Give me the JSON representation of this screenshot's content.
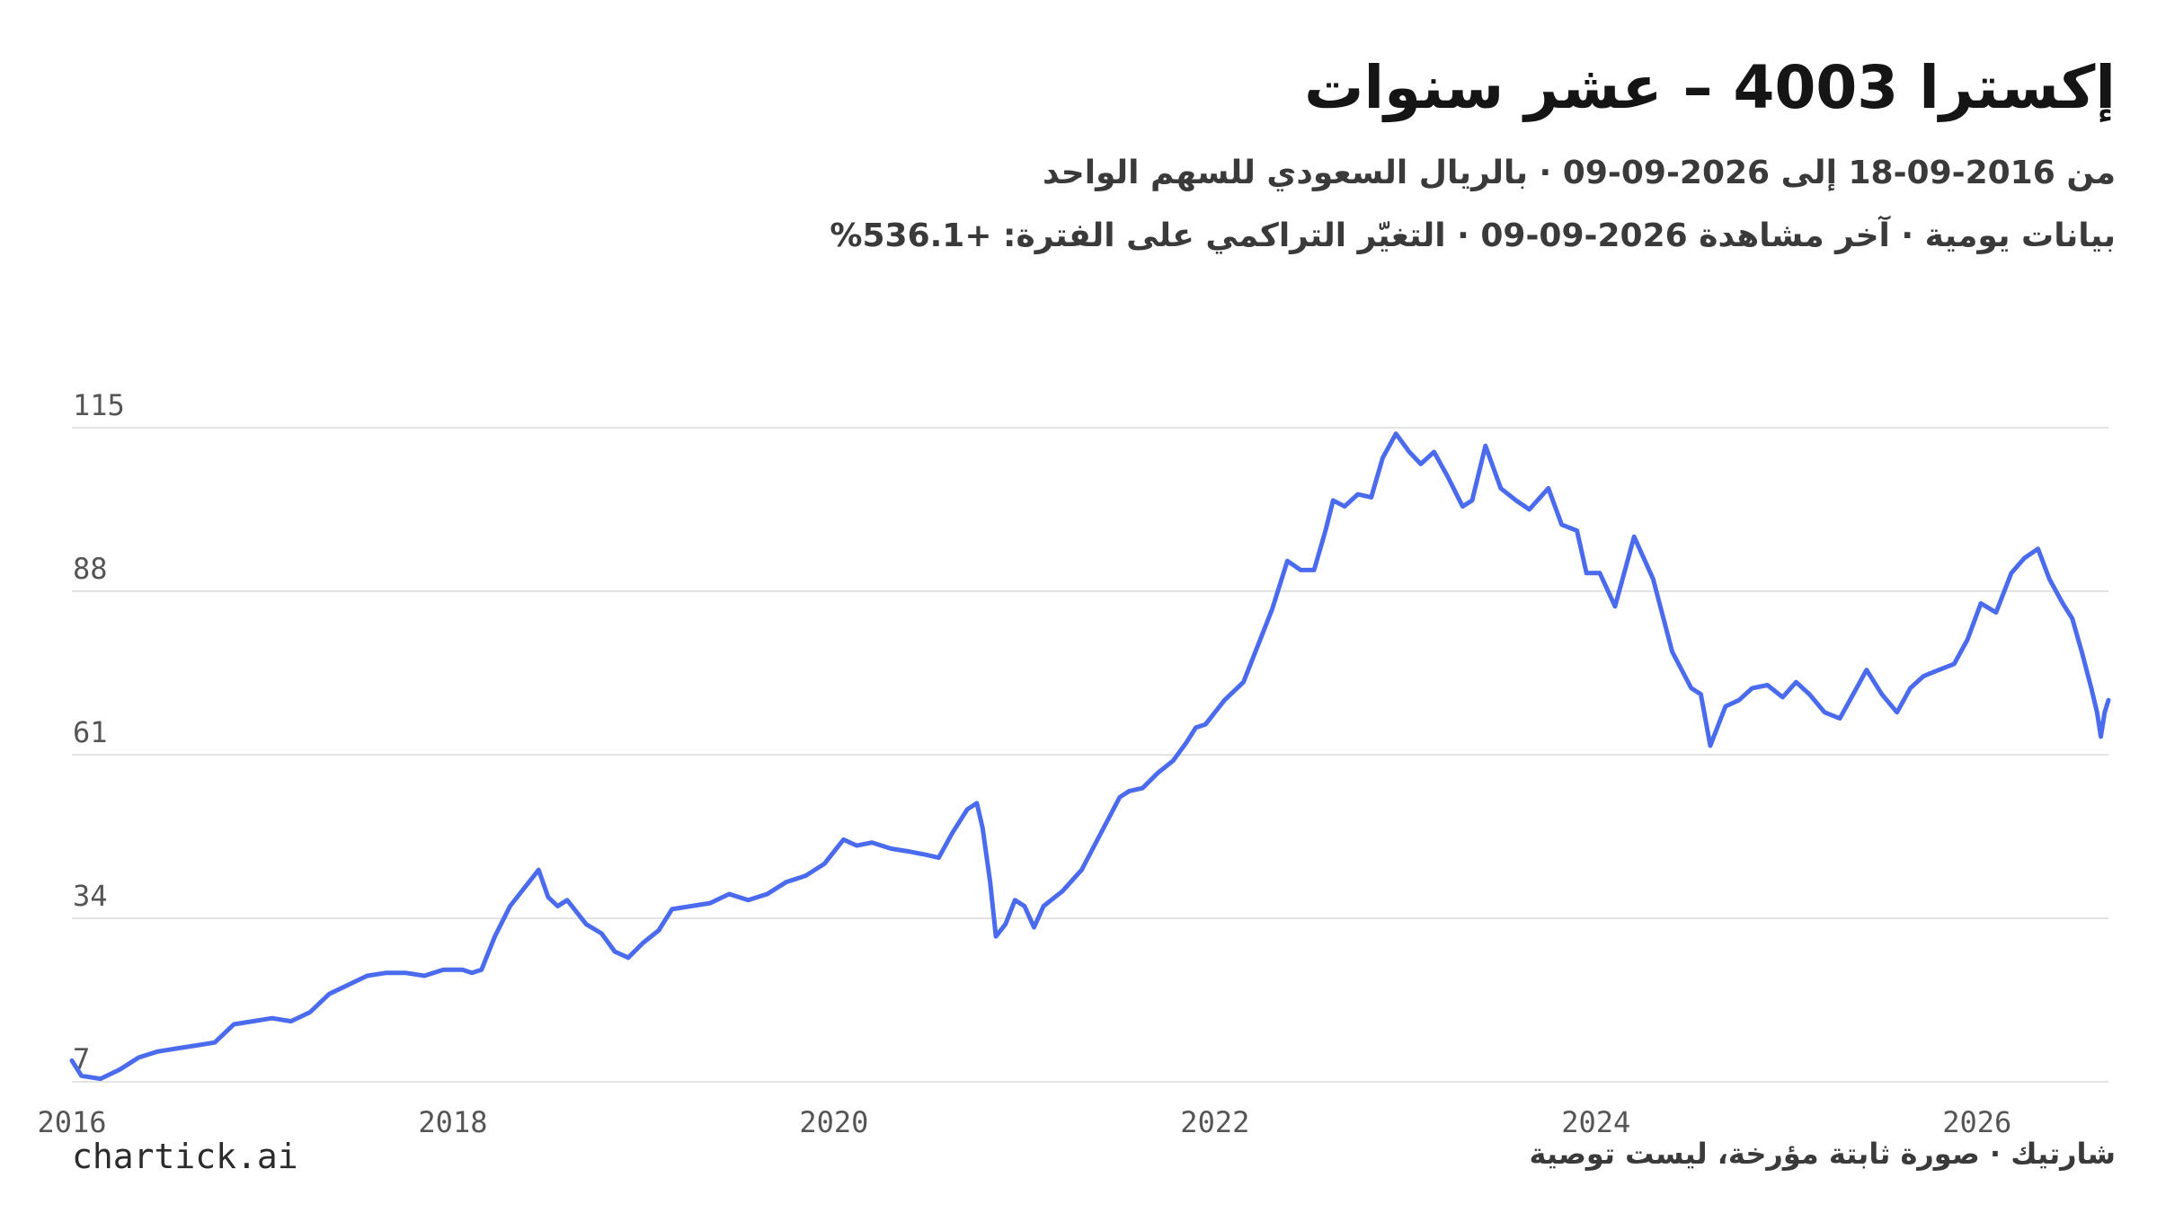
{
  "header": {
    "title": "إكسترا 4003 – عشر سنوات",
    "subtitle": "من 2016-09-18 إلى 2026-09-09 · بالريال السعودي للسهم الواحد",
    "subtitle2": "بيانات يومية · آخر مشاهدة 2026-09-09 · التغيّر التراكمي على الفترة: +536.1%"
  },
  "footer": {
    "brand": "chartick.ai",
    "note": "شارتيك · صورة ثابتة مؤرخة، ليست توصية"
  },
  "colors": {
    "line": "#4b6bee",
    "grid": "#e3e3e3",
    "text": "#1a1a1a"
  },
  "chart_data": {
    "type": "line",
    "y_ticks": [
      7,
      34,
      61,
      88,
      115
    ],
    "x_ticks": [
      2016,
      2018,
      2020,
      2022,
      2024,
      2026
    ],
    "x_range": [
      2016.0,
      2026.69
    ],
    "y_range": [
      7,
      115
    ],
    "grid": "horizontal",
    "series": [
      {
        "points": [
          [
            2016.0,
            10.5
          ],
          [
            2016.05,
            8.0
          ],
          [
            2016.15,
            7.5
          ],
          [
            2016.25,
            9.0
          ],
          [
            2016.35,
            11.0
          ],
          [
            2016.45,
            12.0
          ],
          [
            2016.55,
            12.5
          ],
          [
            2016.65,
            13.0
          ],
          [
            2016.75,
            13.5
          ],
          [
            2016.85,
            16.5
          ],
          [
            2016.95,
            17.0
          ],
          [
            2017.05,
            17.5
          ],
          [
            2017.15,
            17.0
          ],
          [
            2017.25,
            18.5
          ],
          [
            2017.35,
            21.5
          ],
          [
            2017.45,
            23.0
          ],
          [
            2017.55,
            24.5
          ],
          [
            2017.65,
            25.0
          ],
          [
            2017.75,
            25.0
          ],
          [
            2017.85,
            24.5
          ],
          [
            2017.95,
            25.5
          ],
          [
            2018.05,
            25.5
          ],
          [
            2018.1,
            25.0
          ],
          [
            2018.15,
            25.5
          ],
          [
            2018.22,
            31.0
          ],
          [
            2018.3,
            36.0
          ],
          [
            2018.35,
            38.0
          ],
          [
            2018.4,
            40.0
          ],
          [
            2018.45,
            42.0
          ],
          [
            2018.5,
            37.5
          ],
          [
            2018.55,
            36.0
          ],
          [
            2018.6,
            37.0
          ],
          [
            2018.7,
            33.0
          ],
          [
            2018.78,
            31.5
          ],
          [
            2018.85,
            28.5
          ],
          [
            2018.92,
            27.5
          ],
          [
            2019.0,
            30.0
          ],
          [
            2019.08,
            32.0
          ],
          [
            2019.15,
            35.5
          ],
          [
            2019.25,
            36.0
          ],
          [
            2019.35,
            36.5
          ],
          [
            2019.45,
            38.0
          ],
          [
            2019.55,
            37.0
          ],
          [
            2019.65,
            38.0
          ],
          [
            2019.75,
            40.0
          ],
          [
            2019.85,
            41.0
          ],
          [
            2019.95,
            43.0
          ],
          [
            2020.05,
            47.0
          ],
          [
            2020.12,
            46.0
          ],
          [
            2020.2,
            46.5
          ],
          [
            2020.3,
            45.5
          ],
          [
            2020.4,
            45.0
          ],
          [
            2020.48,
            44.5
          ],
          [
            2020.55,
            44.0
          ],
          [
            2020.62,
            48.0
          ],
          [
            2020.7,
            52.0
          ],
          [
            2020.75,
            53.0
          ],
          [
            2020.78,
            49.0
          ],
          [
            2020.82,
            40.0
          ],
          [
            2020.85,
            31.0
          ],
          [
            2020.9,
            33.0
          ],
          [
            2020.95,
            37.0
          ],
          [
            2021.0,
            36.0
          ],
          [
            2021.05,
            32.5
          ],
          [
            2021.1,
            36.0
          ],
          [
            2021.2,
            38.5
          ],
          [
            2021.3,
            42.0
          ],
          [
            2021.4,
            48.0
          ],
          [
            2021.5,
            54.0
          ],
          [
            2021.55,
            55.0
          ],
          [
            2021.62,
            55.5
          ],
          [
            2021.7,
            58.0
          ],
          [
            2021.78,
            60.0
          ],
          [
            2021.85,
            63.0
          ],
          [
            2021.9,
            65.5
          ],
          [
            2021.95,
            66.0
          ],
          [
            2022.05,
            70.0
          ],
          [
            2022.15,
            73.0
          ],
          [
            2022.2,
            77.0
          ],
          [
            2022.25,
            81.0
          ],
          [
            2022.3,
            85.0
          ],
          [
            2022.38,
            93.0
          ],
          [
            2022.45,
            91.5
          ],
          [
            2022.52,
            91.5
          ],
          [
            2022.58,
            98.0
          ],
          [
            2022.62,
            103.0
          ],
          [
            2022.68,
            102.0
          ],
          [
            2022.75,
            104.0
          ],
          [
            2022.82,
            103.5
          ],
          [
            2022.88,
            110.0
          ],
          [
            2022.95,
            114.0
          ],
          [
            2023.02,
            111.0
          ],
          [
            2023.08,
            109.0
          ],
          [
            2023.15,
            111.0
          ],
          [
            2023.22,
            107.0
          ],
          [
            2023.3,
            102.0
          ],
          [
            2023.35,
            103.0
          ],
          [
            2023.42,
            112.0
          ],
          [
            2023.5,
            105.0
          ],
          [
            2023.58,
            103.0
          ],
          [
            2023.65,
            101.5
          ],
          [
            2023.75,
            105.0
          ],
          [
            2023.82,
            99.0
          ],
          [
            2023.9,
            98.0
          ],
          [
            2023.95,
            91.0
          ],
          [
            2024.02,
            91.0
          ],
          [
            2024.1,
            85.5
          ],
          [
            2024.2,
            97.0
          ],
          [
            2024.3,
            90.0
          ],
          [
            2024.35,
            84.0
          ],
          [
            2024.4,
            78.0
          ],
          [
            2024.45,
            75.0
          ],
          [
            2024.5,
            72.0
          ],
          [
            2024.55,
            71.0
          ],
          [
            2024.6,
            62.5
          ],
          [
            2024.68,
            69.0
          ],
          [
            2024.75,
            70.0
          ],
          [
            2024.82,
            72.0
          ],
          [
            2024.9,
            72.5
          ],
          [
            2024.98,
            70.5
          ],
          [
            2025.05,
            73.0
          ],
          [
            2025.12,
            71.0
          ],
          [
            2025.2,
            68.0
          ],
          [
            2025.28,
            67.0
          ],
          [
            2025.35,
            71.0
          ],
          [
            2025.42,
            75.0
          ],
          [
            2025.5,
            71.0
          ],
          [
            2025.58,
            68.0
          ],
          [
            2025.65,
            72.0
          ],
          [
            2025.72,
            74.0
          ],
          [
            2025.8,
            75.0
          ],
          [
            2025.88,
            76.0
          ],
          [
            2025.95,
            80.0
          ],
          [
            2026.02,
            86.0
          ],
          [
            2026.1,
            84.5
          ],
          [
            2026.18,
            91.0
          ],
          [
            2026.25,
            93.5
          ],
          [
            2026.32,
            95.0
          ],
          [
            2026.38,
            90.0
          ],
          [
            2026.45,
            86.0
          ],
          [
            2026.5,
            83.5
          ],
          [
            2026.55,
            78.0
          ],
          [
            2026.6,
            72.0
          ],
          [
            2026.63,
            68.0
          ],
          [
            2026.65,
            64.0
          ],
          [
            2026.67,
            68.0
          ],
          [
            2026.69,
            70.0
          ]
        ]
      }
    ]
  }
}
